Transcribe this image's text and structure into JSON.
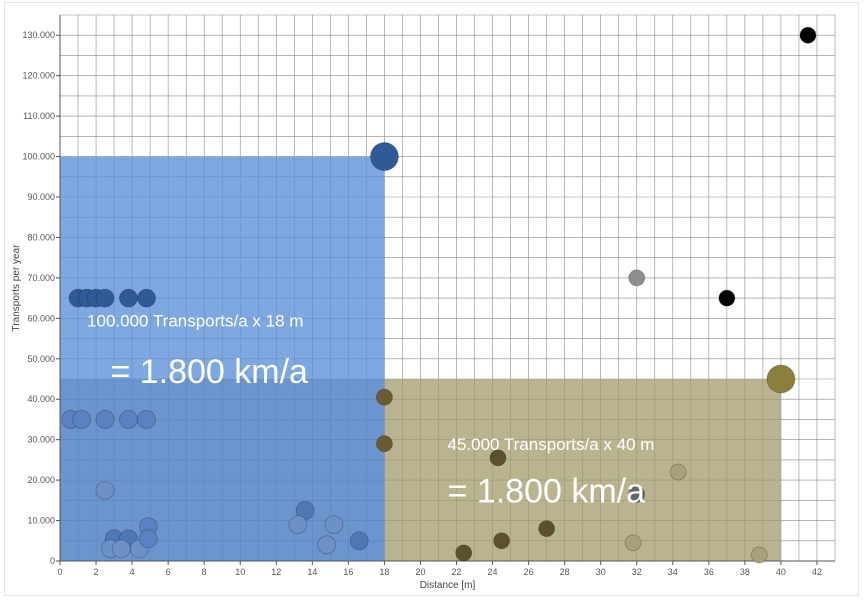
{
  "chart_data": {
    "type": "scatter",
    "title": "",
    "xlabel": "Distance [m]",
    "ylabel": "Transports per year",
    "xlim": [
      0,
      43
    ],
    "ylim": [
      0,
      135000
    ],
    "x_ticks": [
      0,
      2,
      4,
      6,
      8,
      10,
      12,
      14,
      16,
      18,
      20,
      22,
      24,
      26,
      28,
      30,
      32,
      34,
      36,
      38,
      40,
      42
    ],
    "y_ticks": [
      0,
      10000,
      20000,
      30000,
      40000,
      50000,
      60000,
      70000,
      80000,
      90000,
      100000,
      110000,
      120000,
      130000
    ],
    "x_tick_labels": [
      "0",
      "2",
      "4",
      "6",
      "8",
      "10",
      "12",
      "14",
      "16",
      "18",
      "20",
      "22",
      "24",
      "26",
      "28",
      "30",
      "32",
      "34",
      "36",
      "38",
      "40",
      "42"
    ],
    "y_tick_labels": [
      "0",
      "10.000",
      "20.000",
      "30.000",
      "40.000",
      "50.000",
      "60.000",
      "70.000",
      "80.000",
      "90.000",
      "100.000",
      "110.000",
      "120.000",
      "130.000"
    ],
    "grid": true,
    "regions": [
      {
        "x0": 0,
        "x1": 18,
        "y0": 0,
        "y1": 100000,
        "color": "#5b8fd9",
        "opacity": 0.78
      },
      {
        "x0": 18,
        "x1": 40,
        "y0": 0,
        "y1": 45000,
        "color": "#a19a6a",
        "opacity": 0.75
      },
      {
        "x0": 0,
        "x1": 18,
        "y0": 0,
        "y1": 45000,
        "color": "#4a6fa8",
        "opacity": 0.35
      }
    ],
    "points": [
      {
        "x": 1,
        "y": 65000,
        "color": "#2f5a96",
        "size": "medium"
      },
      {
        "x": 1.5,
        "y": 65000,
        "color": "#2f5a96",
        "size": "medium"
      },
      {
        "x": 2,
        "y": 65000,
        "color": "#2f5a96",
        "size": "medium"
      },
      {
        "x": 2.5,
        "y": 65000,
        "color": "#2f5a96",
        "size": "medium"
      },
      {
        "x": 3.8,
        "y": 65000,
        "color": "#2f5a96",
        "size": "medium"
      },
      {
        "x": 4.8,
        "y": 65000,
        "color": "#2f5a96",
        "size": "medium"
      },
      {
        "x": 0.6,
        "y": 35000,
        "color": "#5a82c0",
        "size": "medium"
      },
      {
        "x": 1.2,
        "y": 35000,
        "color": "#5a82c0",
        "size": "medium"
      },
      {
        "x": 2.5,
        "y": 35000,
        "color": "#5a82c0",
        "size": "medium"
      },
      {
        "x": 3.8,
        "y": 35000,
        "color": "#5a82c0",
        "size": "medium"
      },
      {
        "x": 4.8,
        "y": 35000,
        "color": "#5a82c0",
        "size": "medium"
      },
      {
        "x": 2.5,
        "y": 17500,
        "color": "#6e90c8",
        "size": "medium"
      },
      {
        "x": 3,
        "y": 5500,
        "color": "#4e77b4",
        "size": "medium"
      },
      {
        "x": 3.8,
        "y": 5500,
        "color": "#4e77b4",
        "size": "medium"
      },
      {
        "x": 2.8,
        "y": 3000,
        "color": "#6e90c8",
        "size": "medium"
      },
      {
        "x": 3.4,
        "y": 3000,
        "color": "#6e90c8",
        "size": "medium"
      },
      {
        "x": 4.4,
        "y": 3000,
        "color": "#6e90c8",
        "size": "medium"
      },
      {
        "x": 4.9,
        "y": 8500,
        "color": "#5a82c0",
        "size": "medium"
      },
      {
        "x": 4.9,
        "y": 5500,
        "color": "#5a82c0",
        "size": "medium"
      },
      {
        "x": 13.6,
        "y": 12500,
        "color": "#4e77b4",
        "size": "medium"
      },
      {
        "x": 13.2,
        "y": 9000,
        "color": "#6e90c8",
        "size": "medium"
      },
      {
        "x": 15.2,
        "y": 9000,
        "color": "#6e90c8",
        "size": "medium"
      },
      {
        "x": 14.8,
        "y": 4000,
        "color": "#6e90c8",
        "size": "medium"
      },
      {
        "x": 16.6,
        "y": 5000,
        "color": "#4e77b4",
        "size": "medium"
      },
      {
        "x": 18,
        "y": 100000,
        "color": "#2e5a95",
        "size": "large"
      },
      {
        "x": 18,
        "y": 40500,
        "color": "#6a5c30",
        "size": "small"
      },
      {
        "x": 18,
        "y": 29000,
        "color": "#6a5c30",
        "size": "small"
      },
      {
        "x": 22.4,
        "y": 2000,
        "color": "#5c5030",
        "size": "small"
      },
      {
        "x": 24.3,
        "y": 25500,
        "color": "#5c5030",
        "size": "small"
      },
      {
        "x": 24.5,
        "y": 5000,
        "color": "#5c5030",
        "size": "small"
      },
      {
        "x": 27,
        "y": 8000,
        "color": "#5c5030",
        "size": "small"
      },
      {
        "x": 31.8,
        "y": 4500,
        "color": "#a7a07a",
        "size": "small"
      },
      {
        "x": 32,
        "y": 16500,
        "color": "#666666",
        "size": "small"
      },
      {
        "x": 34.3,
        "y": 22000,
        "color": "#a7a07a",
        "size": "small"
      },
      {
        "x": 38.8,
        "y": 1500,
        "color": "#a7a07a",
        "size": "small"
      },
      {
        "x": 32,
        "y": 70000,
        "color": "#8e8e8e",
        "size": "small"
      },
      {
        "x": 37,
        "y": 65000,
        "color": "#000000",
        "size": "small"
      },
      {
        "x": 41.5,
        "y": 130000,
        "color": "#000000",
        "size": "small"
      },
      {
        "x": 40,
        "y": 45000,
        "color": "#8b7f3e",
        "size": "large"
      }
    ],
    "annotations": [
      {
        "text": "100.000 Transports/a x 18  m",
        "x": 1.5,
        "y": 58000,
        "style": "small"
      },
      {
        "text": "= 1.800 km/a",
        "x": 2.8,
        "y": 44000,
        "style": "big"
      },
      {
        "text": "45.000 Transports/a x 40 m",
        "x": 21.5,
        "y": 27500,
        "style": "small"
      },
      {
        "text": "= 1.800 km/a",
        "x": 21.5,
        "y": 14500,
        "style": "big"
      }
    ]
  }
}
